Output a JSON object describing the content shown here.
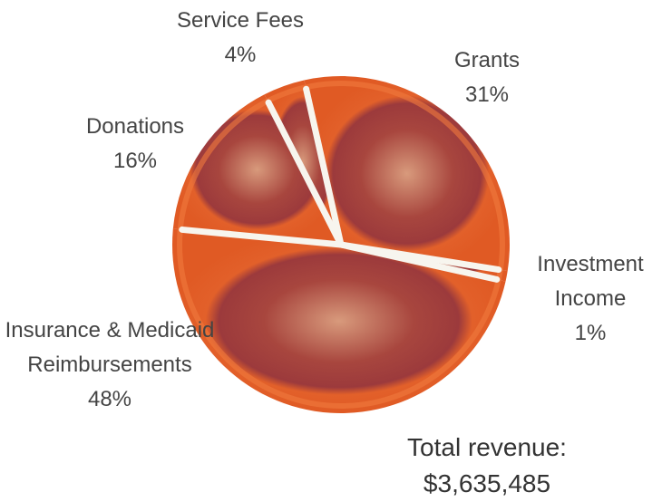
{
  "chart_data": {
    "type": "pie",
    "categories": [
      "Grants",
      "Investment Income",
      "Insurance & Medicaid Reimbursements",
      "Donations",
      "Service Fees"
    ],
    "values": [
      31,
      1,
      48,
      16,
      4
    ],
    "value_labels": [
      "31%",
      "1%",
      "48%",
      "16%",
      "4%"
    ],
    "color": "#e8642c",
    "annotations": [
      "Total revenue:",
      "$3,635,485"
    ]
  }
}
